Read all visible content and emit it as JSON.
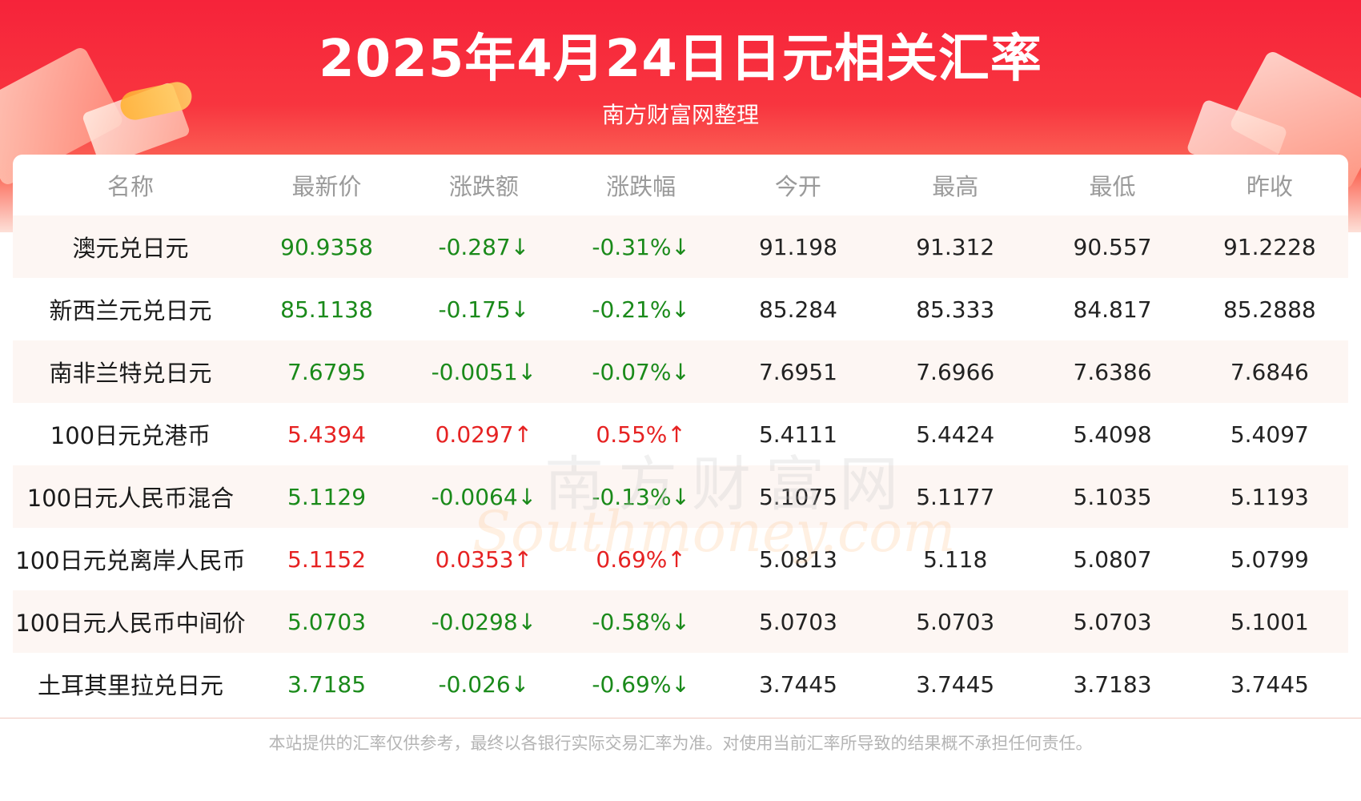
{
  "header": {
    "title": "2025年4月24日日元相关汇率",
    "subtitle": "南方财富网整理"
  },
  "table": {
    "columns": [
      "名称",
      "最新价",
      "涨跌额",
      "涨跌幅",
      "今开",
      "最高",
      "最低",
      "昨收"
    ],
    "rows": [
      {
        "name": "澳元兑日元",
        "latest": "90.9358",
        "change": "-0.287↓",
        "pct": "-0.31%↓",
        "open": "91.198",
        "high": "91.312",
        "low": "90.557",
        "prev": "91.2228",
        "trend": "down"
      },
      {
        "name": "新西兰元兑日元",
        "latest": "85.1138",
        "change": "-0.175↓",
        "pct": "-0.21%↓",
        "open": "85.284",
        "high": "85.333",
        "low": "84.817",
        "prev": "85.2888",
        "trend": "down"
      },
      {
        "name": "南非兰特兑日元",
        "latest": "7.6795",
        "change": "-0.0051↓",
        "pct": "-0.07%↓",
        "open": "7.6951",
        "high": "7.6966",
        "low": "7.6386",
        "prev": "7.6846",
        "trend": "down"
      },
      {
        "name": "100日元兑港币",
        "latest": "5.4394",
        "change": "0.0297↑",
        "pct": "0.55%↑",
        "open": "5.4111",
        "high": "5.4424",
        "low": "5.4098",
        "prev": "5.4097",
        "trend": "up"
      },
      {
        "name": "100日元人民币混合",
        "latest": "5.1129",
        "change": "-0.0064↓",
        "pct": "-0.13%↓",
        "open": "5.1075",
        "high": "5.1177",
        "low": "5.1035",
        "prev": "5.1193",
        "trend": "down"
      },
      {
        "name": "100日元兑离岸人民币",
        "latest": "5.1152",
        "change": "0.0353↑",
        "pct": "0.69%↑",
        "open": "5.0813",
        "high": "5.118",
        "low": "5.0807",
        "prev": "5.0799",
        "trend": "up"
      },
      {
        "name": "100日元人民币中间价",
        "latest": "5.0703",
        "change": "-0.0298↓",
        "pct": "-0.58%↓",
        "open": "5.0703",
        "high": "5.0703",
        "low": "5.0703",
        "prev": "5.1001",
        "trend": "down"
      },
      {
        "name": "土耳其里拉兑日元",
        "latest": "3.7185",
        "change": "-0.026↓",
        "pct": "-0.69%↓",
        "open": "3.7445",
        "high": "3.7445",
        "low": "3.7183",
        "prev": "3.7445",
        "trend": "down"
      }
    ]
  },
  "watermark": {
    "cn": "南方财富网",
    "en": "Southmoney.com"
  },
  "footer": {
    "disclaimer": "本站提供的汇率仅供参考，最终以各银行实际交易汇率为准。对使用当前汇率所导致的结果概不承担任何责任。"
  },
  "colors": {
    "banner_red": "#f6233a",
    "down_green": "#1a8a1a",
    "up_red": "#e62222",
    "header_gray": "#9a9a9a",
    "row_stripe": "#fdf6f3"
  }
}
